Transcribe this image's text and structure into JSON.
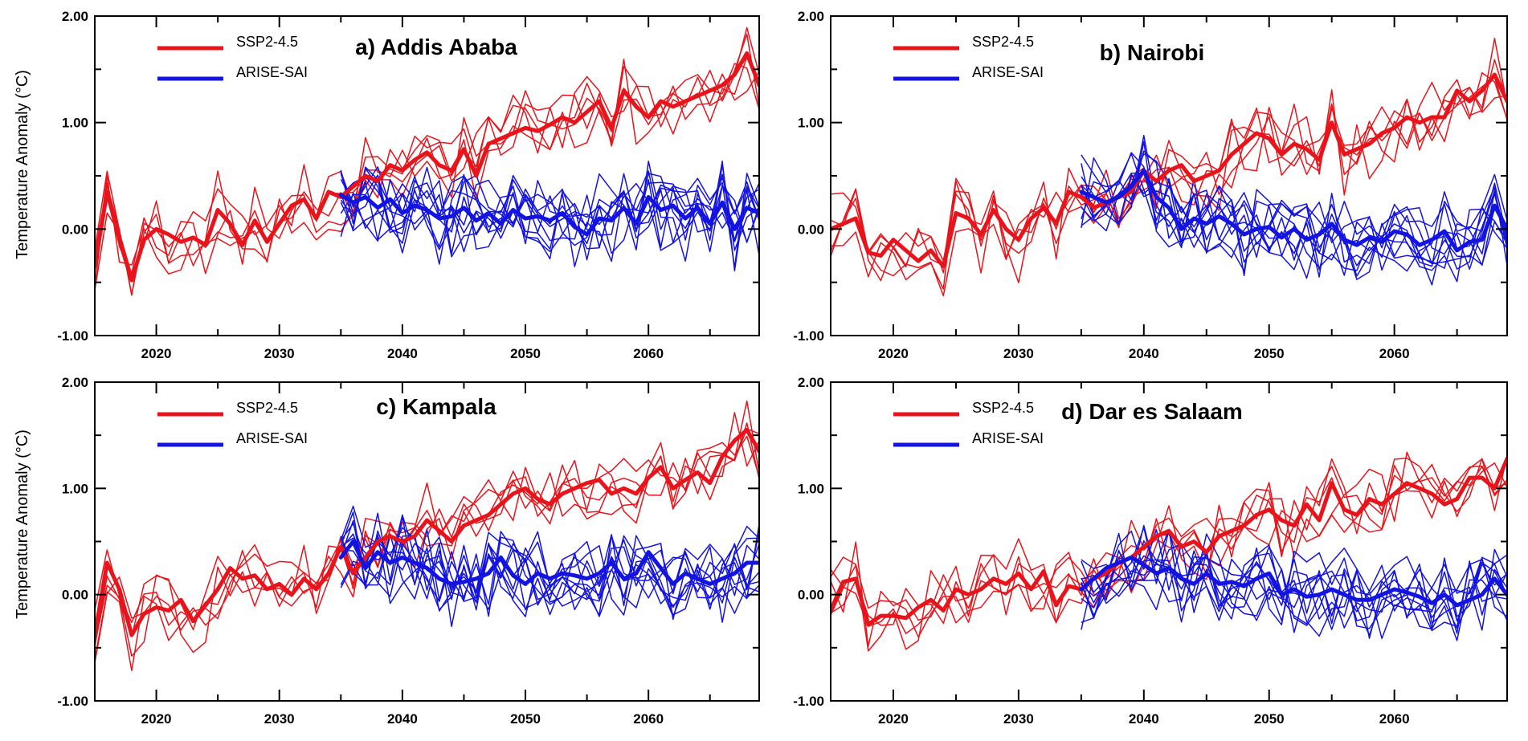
{
  "figure": {
    "ylabel": "Temperature Anomaly (°C)"
  },
  "colors": {
    "ssp": "#e8141b",
    "arise": "#1414e0",
    "axis": "#000000"
  },
  "chart_data": [
    {
      "type": "line",
      "title": "a) Addis Ababa",
      "xlabel": "",
      "ylabel": "Temperature Anomaly (°C)",
      "xlim": [
        2015,
        2069
      ],
      "ylim": [
        -1.0,
        2.0
      ],
      "xticks": [
        2020,
        2030,
        2040,
        2050,
        2060
      ],
      "xtick_labels": [
        "2020",
        "2030",
        "2040",
        "2050",
        "2060"
      ],
      "yticks": [
        -1.0,
        0.0,
        1.0,
        2.0
      ],
      "ytick_labels": [
        "-1.00",
        "0.00",
        "1.00",
        "2.00"
      ],
      "legend": [
        "SSP2-4.5",
        "ARISE-SAI"
      ],
      "legend_position": "top-left",
      "series": [
        {
          "name": "SSP2-4.5 ensemble mean",
          "scenario": "SSP2-4.5",
          "x": [
            2015,
            2016,
            2017,
            2018,
            2019,
            2020,
            2021,
            2022,
            2023,
            2024,
            2025,
            2026,
            2027,
            2028,
            2029,
            2030,
            2031,
            2032,
            2033,
            2034,
            2035,
            2036,
            2037,
            2038,
            2039,
            2040,
            2041,
            2042,
            2043,
            2044,
            2045,
            2046,
            2047,
            2048,
            2049,
            2050,
            2051,
            2052,
            2053,
            2054,
            2055,
            2056,
            2057,
            2058,
            2059,
            2060,
            2061,
            2062,
            2063,
            2064,
            2065,
            2066,
            2067,
            2068,
            2069
          ],
          "values": [
            -0.35,
            0.35,
            -0.1,
            -0.48,
            -0.1,
            0.0,
            -0.05,
            -0.12,
            -0.08,
            -0.15,
            0.18,
            0.05,
            -0.15,
            0.08,
            -0.12,
            0.05,
            0.22,
            0.28,
            0.1,
            0.35,
            0.3,
            0.4,
            0.5,
            0.45,
            0.6,
            0.55,
            0.65,
            0.72,
            0.6,
            0.55,
            0.75,
            0.5,
            0.8,
            0.85,
            0.9,
            0.95,
            0.92,
            0.98,
            1.05,
            1.0,
            1.1,
            1.2,
            0.95,
            1.3,
            1.15,
            1.05,
            1.2,
            1.15,
            1.2,
            1.25,
            1.3,
            1.35,
            1.45,
            1.65,
            1.35
          ]
        },
        {
          "name": "ARISE-SAI ensemble mean",
          "scenario": "ARISE-SAI",
          "x": [
            2035,
            2036,
            2037,
            2038,
            2039,
            2040,
            2041,
            2042,
            2043,
            2044,
            2045,
            2046,
            2047,
            2048,
            2049,
            2050,
            2051,
            2052,
            2053,
            2054,
            2055,
            2056,
            2057,
            2058,
            2059,
            2060,
            2061,
            2062,
            2063,
            2064,
            2065,
            2066,
            2067,
            2068,
            2069
          ],
          "values": [
            0.32,
            0.25,
            0.3,
            0.2,
            0.28,
            0.15,
            0.22,
            0.18,
            0.1,
            0.12,
            0.2,
            0.08,
            0.15,
            0.05,
            0.18,
            0.1,
            0.12,
            0.08,
            0.15,
            0.02,
            -0.05,
            0.1,
            0.08,
            0.2,
            0.05,
            0.3,
            0.18,
            0.22,
            0.1,
            0.2,
            0.05,
            0.25,
            0.0,
            0.2,
            0.15
          ]
        }
      ]
    },
    {
      "type": "line",
      "title": "b) Nairobi",
      "xlabel": "",
      "ylabel": "",
      "xlim": [
        2015,
        2069
      ],
      "ylim": [
        -1.0,
        2.0
      ],
      "xticks": [
        2020,
        2030,
        2040,
        2050,
        2060
      ],
      "xtick_labels": [
        "2020",
        "2030",
        "2040",
        "2050",
        "2060"
      ],
      "yticks": [
        -1.0,
        0.0,
        1.0,
        2.0
      ],
      "ytick_labels": [
        "-1.00",
        "0.00",
        "1.00",
        "2.00"
      ],
      "legend": [
        "SSP2-4.5",
        "ARISE-SAI"
      ],
      "legend_position": "top-left",
      "series": [
        {
          "name": "SSP2-4.5 ensemble mean",
          "scenario": "SSP2-4.5",
          "x": [
            2015,
            2016,
            2017,
            2018,
            2019,
            2020,
            2021,
            2022,
            2023,
            2024,
            2025,
            2026,
            2027,
            2028,
            2029,
            2030,
            2031,
            2032,
            2033,
            2034,
            2035,
            2036,
            2037,
            2038,
            2039,
            2040,
            2041,
            2042,
            2043,
            2044,
            2045,
            2046,
            2047,
            2048,
            2049,
            2050,
            2051,
            2052,
            2053,
            2054,
            2055,
            2056,
            2057,
            2058,
            2059,
            2060,
            2061,
            2062,
            2063,
            2064,
            2065,
            2066,
            2067,
            2068,
            2069
          ],
          "values": [
            0.0,
            0.05,
            0.1,
            -0.22,
            -0.25,
            -0.1,
            -0.2,
            -0.3,
            -0.2,
            -0.35,
            0.15,
            0.1,
            -0.05,
            0.18,
            0.0,
            -0.1,
            0.1,
            0.2,
            0.05,
            0.35,
            0.3,
            0.2,
            0.25,
            0.3,
            0.35,
            0.55,
            0.45,
            0.55,
            0.6,
            0.45,
            0.5,
            0.55,
            0.7,
            0.8,
            0.9,
            0.85,
            0.7,
            0.8,
            0.75,
            0.65,
            1.0,
            0.7,
            0.75,
            0.8,
            0.9,
            0.95,
            1.05,
            1.0,
            1.05,
            1.05,
            1.3,
            1.2,
            1.3,
            1.45,
            1.2
          ]
        },
        {
          "name": "ARISE-SAI ensemble mean",
          "scenario": "ARISE-SAI",
          "x": [
            2035,
            2036,
            2037,
            2038,
            2039,
            2040,
            2041,
            2042,
            2043,
            2044,
            2045,
            2046,
            2047,
            2048,
            2049,
            2050,
            2051,
            2052,
            2053,
            2054,
            2055,
            2056,
            2057,
            2058,
            2059,
            2060,
            2061,
            2062,
            2063,
            2064,
            2065,
            2066,
            2067,
            2068,
            2069
          ],
          "values": [
            0.35,
            0.3,
            0.25,
            0.3,
            0.4,
            0.55,
            0.3,
            0.2,
            0.0,
            0.1,
            0.05,
            0.12,
            0.05,
            -0.05,
            0.0,
            0.02,
            -0.08,
            0.0,
            -0.1,
            -0.05,
            0.05,
            -0.1,
            -0.15,
            -0.08,
            -0.12,
            -0.02,
            -0.05,
            -0.15,
            -0.1,
            -0.02,
            -0.2,
            -0.12,
            -0.1,
            0.22,
            0.0
          ]
        }
      ]
    },
    {
      "type": "line",
      "title": "c) Kampala",
      "xlabel": "",
      "ylabel": "Temperature Anomaly (°C)",
      "xlim": [
        2015,
        2069
      ],
      "ylim": [
        -1.0,
        2.0
      ],
      "xticks": [
        2020,
        2030,
        2040,
        2050,
        2060
      ],
      "xtick_labels": [
        "2020",
        "2030",
        "2040",
        "2050",
        "2060"
      ],
      "yticks": [
        -1.0,
        0.0,
        1.0,
        2.0
      ],
      "ytick_labels": [
        "-1.00",
        "0.00",
        "1.00",
        "2.00"
      ],
      "legend": [
        "SSP2-4.5",
        "ARISE-SAI"
      ],
      "legend_position": "top-left",
      "series": [
        {
          "name": "SSP2-4.5 ensemble mean",
          "scenario": "SSP2-4.5",
          "x": [
            2015,
            2016,
            2017,
            2018,
            2019,
            2020,
            2021,
            2022,
            2023,
            2024,
            2025,
            2026,
            2027,
            2028,
            2029,
            2030,
            2031,
            2032,
            2033,
            2034,
            2035,
            2036,
            2037,
            2038,
            2039,
            2040,
            2041,
            2042,
            2043,
            2044,
            2045,
            2046,
            2047,
            2048,
            2049,
            2050,
            2051,
            2052,
            2053,
            2054,
            2055,
            2056,
            2057,
            2058,
            2059,
            2060,
            2061,
            2062,
            2063,
            2064,
            2065,
            2066,
            2067,
            2068,
            2069
          ],
          "values": [
            -0.38,
            0.3,
            0.05,
            -0.38,
            -0.18,
            -0.12,
            -0.15,
            -0.05,
            -0.25,
            -0.1,
            0.05,
            0.25,
            0.15,
            0.18,
            0.05,
            0.1,
            0.0,
            0.15,
            0.05,
            0.2,
            0.45,
            0.2,
            0.35,
            0.5,
            0.55,
            0.5,
            0.55,
            0.7,
            0.6,
            0.5,
            0.65,
            0.7,
            0.75,
            0.85,
            0.95,
            1.0,
            0.9,
            0.85,
            0.95,
            1.0,
            1.05,
            1.08,
            0.95,
            1.0,
            0.95,
            1.1,
            1.2,
            1.0,
            1.08,
            1.15,
            1.05,
            1.3,
            1.45,
            1.55,
            1.35
          ]
        },
        {
          "name": "ARISE-SAI ensemble mean",
          "scenario": "ARISE-SAI",
          "x": [
            2035,
            2036,
            2037,
            2038,
            2039,
            2040,
            2041,
            2042,
            2043,
            2044,
            2045,
            2046,
            2047,
            2048,
            2049,
            2050,
            2051,
            2052,
            2053,
            2054,
            2055,
            2056,
            2057,
            2058,
            2059,
            2060,
            2061,
            2062,
            2063,
            2064,
            2065,
            2066,
            2067,
            2068,
            2069
          ],
          "values": [
            0.35,
            0.5,
            0.25,
            0.4,
            0.3,
            0.35,
            0.3,
            0.25,
            0.15,
            0.1,
            0.12,
            0.15,
            0.2,
            0.35,
            0.18,
            0.1,
            0.2,
            0.15,
            0.2,
            0.18,
            0.15,
            0.2,
            0.3,
            0.15,
            0.2,
            0.4,
            0.25,
            0.1,
            0.2,
            0.15,
            0.1,
            0.15,
            0.2,
            0.3,
            0.3
          ]
        }
      ]
    },
    {
      "type": "line",
      "title": "d) Dar es Salaam",
      "xlabel": "",
      "ylabel": "",
      "xlim": [
        2015,
        2069
      ],
      "ylim": [
        -1.0,
        2.0
      ],
      "xticks": [
        2020,
        2030,
        2040,
        2050,
        2060
      ],
      "xtick_labels": [
        "2020",
        "2030",
        "2040",
        "2050",
        "2060"
      ],
      "yticks": [
        -1.0,
        0.0,
        1.0,
        2.0
      ],
      "ytick_labels": [
        "-1.00",
        "0.00",
        "1.00",
        "2.00"
      ],
      "legend": [
        "SSP2-4.5",
        "ARISE-SAI"
      ],
      "legend_position": "top-left",
      "series": [
        {
          "name": "SSP2-4.5 ensemble mean",
          "scenario": "SSP2-4.5",
          "x": [
            2015,
            2016,
            2017,
            2018,
            2019,
            2020,
            2021,
            2022,
            2023,
            2024,
            2025,
            2026,
            2027,
            2028,
            2029,
            2030,
            2031,
            2032,
            2033,
            2034,
            2035,
            2036,
            2037,
            2038,
            2039,
            2040,
            2041,
            2042,
            2043,
            2044,
            2045,
            2046,
            2047,
            2048,
            2049,
            2050,
            2051,
            2052,
            2053,
            2054,
            2055,
            2056,
            2057,
            2058,
            2059,
            2060,
            2061,
            2062,
            2063,
            2064,
            2065,
            2066,
            2067,
            2068,
            2069
          ],
          "values": [
            -0.15,
            0.12,
            0.15,
            -0.28,
            -0.2,
            -0.2,
            -0.22,
            -0.12,
            -0.05,
            -0.15,
            0.05,
            0.0,
            0.05,
            0.15,
            0.1,
            0.2,
            0.05,
            0.22,
            -0.1,
            0.08,
            0.05,
            0.15,
            0.2,
            0.3,
            0.35,
            0.45,
            0.55,
            0.6,
            0.45,
            0.5,
            0.4,
            0.55,
            0.6,
            0.65,
            0.75,
            0.8,
            0.7,
            0.65,
            0.85,
            0.7,
            1.05,
            0.8,
            0.75,
            0.9,
            0.85,
            0.95,
            1.05,
            1.0,
            0.95,
            0.85,
            0.9,
            1.1,
            1.1,
            1.0,
            1.28
          ]
        },
        {
          "name": "ARISE-SAI ensemble mean",
          "scenario": "ARISE-SAI",
          "x": [
            2035,
            2036,
            2037,
            2038,
            2039,
            2040,
            2041,
            2042,
            2043,
            2044,
            2045,
            2046,
            2047,
            2048,
            2049,
            2050,
            2051,
            2052,
            2053,
            2054,
            2055,
            2056,
            2057,
            2058,
            2059,
            2060,
            2061,
            2062,
            2063,
            2064,
            2065,
            2066,
            2067,
            2068,
            2069
          ],
          "values": [
            0.05,
            0.15,
            0.25,
            0.3,
            0.35,
            0.28,
            0.2,
            0.25,
            0.15,
            0.1,
            0.2,
            0.1,
            0.12,
            0.08,
            0.15,
            0.2,
            0.0,
            0.05,
            -0.02,
            0.0,
            0.05,
            0.0,
            -0.05,
            -0.05,
            0.0,
            0.05,
            0.02,
            -0.02,
            -0.08,
            0.0,
            -0.1,
            -0.05,
            0.0,
            0.15,
            0.0
          ]
        }
      ]
    }
  ]
}
